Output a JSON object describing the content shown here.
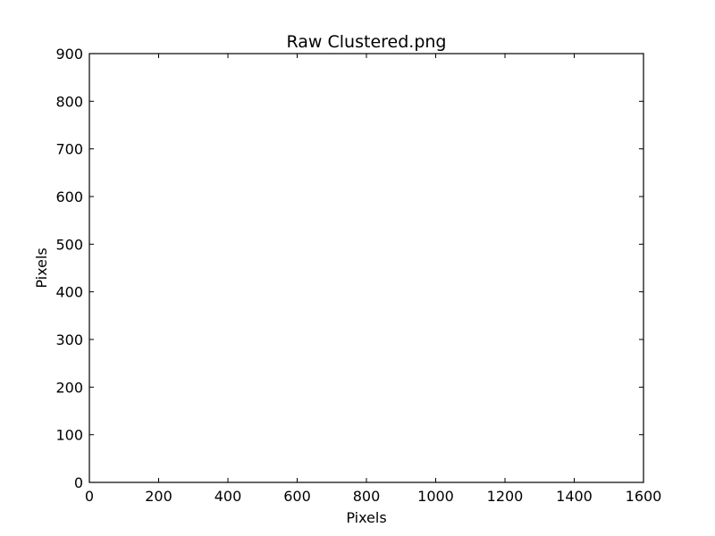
{
  "chart_data": {
    "type": "scatter",
    "title": "Raw Clustered.png",
    "xlabel": "Pixels",
    "ylabel": "Pixels",
    "xlim": [
      0,
      1600
    ],
    "ylim": [
      0,
      900
    ],
    "x_ticks": [
      0,
      200,
      400,
      600,
      800,
      1000,
      1200,
      1400,
      1600
    ],
    "y_ticks": [
      0,
      100,
      200,
      300,
      400,
      500,
      600,
      700,
      800,
      900
    ],
    "x_tick_labels": [
      "0",
      "200",
      "400",
      "600",
      "800",
      "1000",
      "1200",
      "1400",
      "1600"
    ],
    "y_tick_labels": [
      "0",
      "100",
      "200",
      "300",
      "400",
      "500",
      "600",
      "700",
      "800",
      "900"
    ],
    "grid": false,
    "series": [
      {
        "points": []
      }
    ],
    "colors": {
      "axes": "#000000",
      "background": "#ffffff"
    }
  }
}
